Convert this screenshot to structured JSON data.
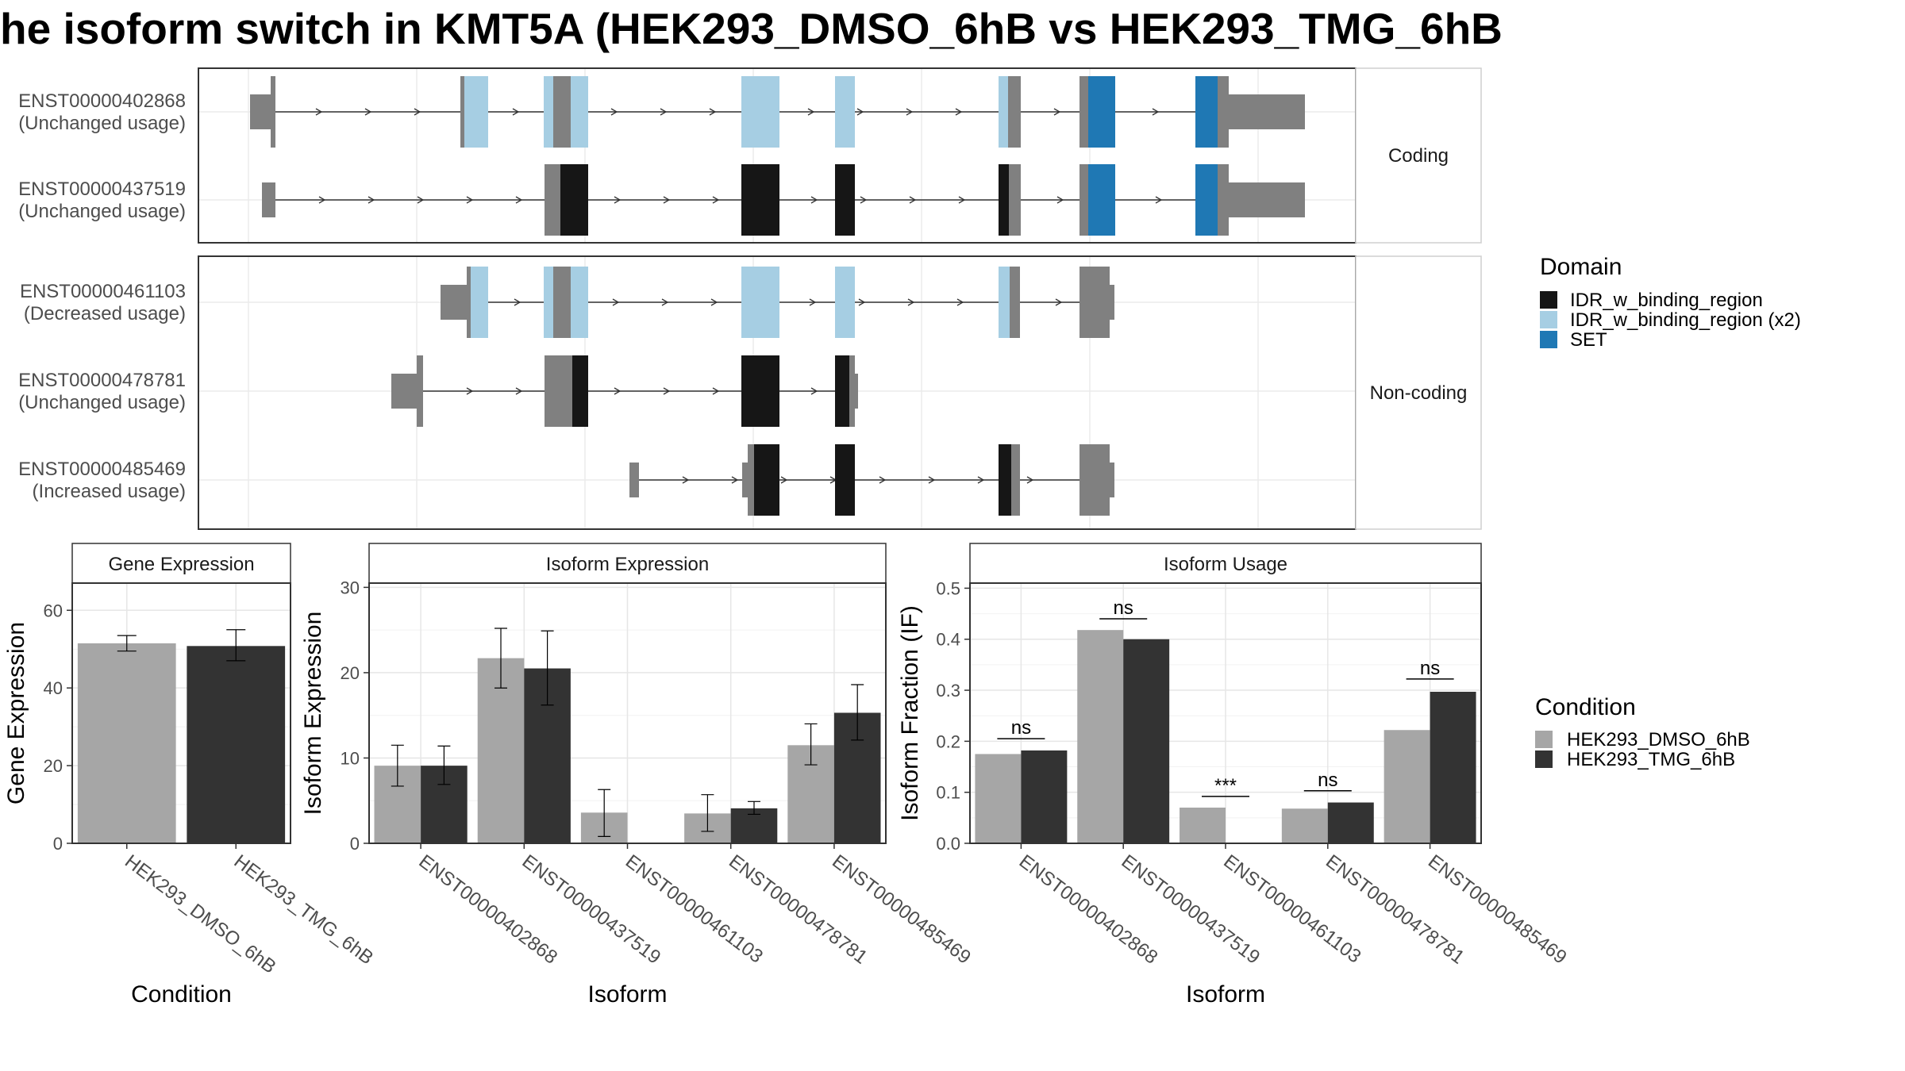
{
  "title": "he isoform switch in KMT5A (HEK293_DMSO_6hB vs HEK293_TMG_6hB",
  "colors": {
    "dmso": "#a6a6a6",
    "tmg": "#333333",
    "utr": "#808080",
    "idr": "#161616",
    "idr_x2": "#a6cee3",
    "set": "#1f78b4"
  },
  "transcript_panel": {
    "groups": [
      {
        "label": "Coding",
        "tracks": [
          0,
          1
        ]
      },
      {
        "label": "Non-coding",
        "tracks": [
          2,
          3,
          4
        ]
      }
    ],
    "tracks": [
      {
        "id": "ENST00000402868",
        "usage": "(Unchanged usage)"
      },
      {
        "id": "ENST00000437519",
        "usage": "(Unchanged usage)"
      },
      {
        "id": "ENST00000461103",
        "usage": "(Decreased usage)"
      },
      {
        "id": "ENST00000478781",
        "usage": "(Unchanged usage)"
      },
      {
        "id": "ENST00000485469",
        "usage": "(Increased usage)"
      }
    ],
    "domain_legend": {
      "title": "Domain",
      "entries": [
        {
          "label": "IDR_w_binding_region",
          "color": "#161616"
        },
        {
          "label": "IDR_w_binding_region (x2)",
          "color": "#a6cee3"
        },
        {
          "label": "SET",
          "color": "#1f78b4"
        }
      ]
    }
  },
  "condition_legend": {
    "title": "Condition",
    "entries": [
      {
        "label": "HEK293_DMSO_6hB",
        "color": "#a6a6a6"
      },
      {
        "label": "HEK293_TMG_6hB",
        "color": "#333333"
      }
    ]
  },
  "chart_data": [
    {
      "type": "bar",
      "title": "Gene Expression",
      "xlabel": "Condition",
      "ylabel": "Gene Expression",
      "ylim": [
        0,
        67
      ],
      "yticks": [
        0,
        20,
        40,
        60
      ],
      "categories": [
        "HEK293_DMSO_6hB",
        "HEK293_TMG_6hB"
      ],
      "values": [
        51.5,
        50.8
      ],
      "errors": [
        [
          49.5,
          53.5
        ],
        [
          47,
          55
        ]
      ],
      "colors": [
        "#a6a6a6",
        "#333333"
      ]
    },
    {
      "type": "bar",
      "title": "Isoform Expression",
      "xlabel": "Isoform",
      "ylabel": "Isoform Expression",
      "ylim": [
        0,
        30.5
      ],
      "yticks": [
        0,
        10,
        20,
        30
      ],
      "categories": [
        "ENST00000402868",
        "ENST00000437519",
        "ENST00000461103",
        "ENST00000478781",
        "ENST00000485469"
      ],
      "series": [
        {
          "name": "HEK293_DMSO_6hB",
          "values": [
            9.1,
            21.7,
            3.6,
            3.5,
            11.5
          ],
          "errors": [
            [
              6.7,
              11.5
            ],
            [
              18.2,
              25.2
            ],
            [
              0.8,
              6.3
            ],
            [
              1.4,
              5.7
            ],
            [
              9.2,
              14
            ]
          ]
        },
        {
          "name": "HEK293_TMG_6hB",
          "values": [
            9.1,
            20.5,
            0,
            4.1,
            15.3
          ],
          "errors": [
            [
              6.9,
              11.4
            ],
            [
              16.2,
              24.9
            ],
            [
              0,
              0
            ],
            [
              3.4,
              4.9
            ],
            [
              12.1,
              18.6
            ]
          ]
        }
      ]
    },
    {
      "type": "bar",
      "title": "Isoform Usage",
      "xlabel": "Isoform",
      "ylabel": "Isoform Fraction (IF)",
      "ylim": [
        0,
        0.51
      ],
      "yticks": [
        0.0,
        0.1,
        0.2,
        0.3,
        0.4,
        0.5
      ],
      "categories": [
        "ENST00000402868",
        "ENST00000437519",
        "ENST00000461103",
        "ENST00000478781",
        "ENST00000485469"
      ],
      "series": [
        {
          "name": "HEK293_DMSO_6hB",
          "values": [
            0.175,
            0.418,
            0.07,
            0.068,
            0.222
          ]
        },
        {
          "name": "HEK293_TMG_6hB",
          "values": [
            0.182,
            0.4,
            0,
            0.08,
            0.297
          ]
        }
      ],
      "significance": [
        "ns",
        "ns",
        "***",
        "ns",
        "ns"
      ],
      "significance_y": [
        0.205,
        0.44,
        0.092,
        0.103,
        0.322
      ]
    }
  ]
}
